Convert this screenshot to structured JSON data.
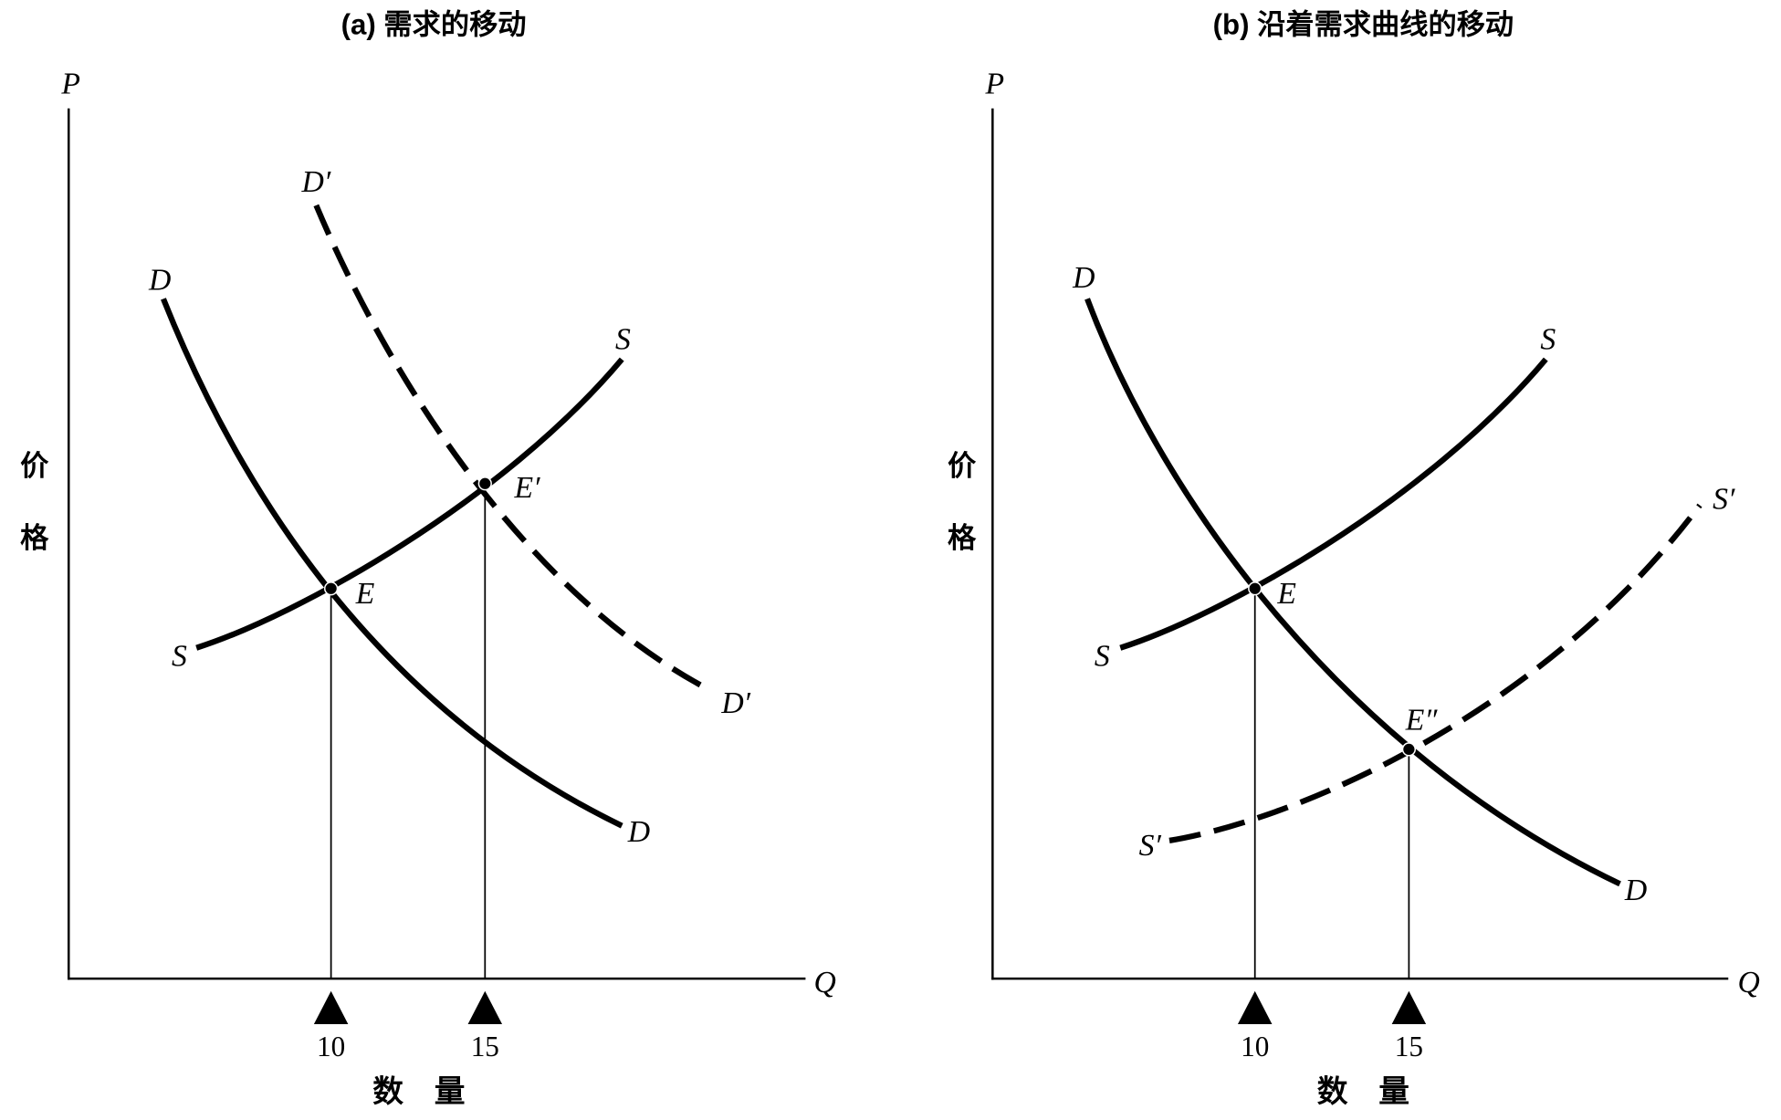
{
  "colors": {
    "background": "#ffffff",
    "ink": "#000000"
  },
  "panel_a": {
    "title": "(a) 需求的移动",
    "axis_p": "P",
    "axis_q": "Q",
    "price_label": [
      "价",
      "格"
    ],
    "quantity_label": [
      "数",
      "量"
    ],
    "ticks": [
      "10",
      "15"
    ],
    "demand_labels": [
      "D",
      "D"
    ],
    "supply_labels": [
      "S",
      "S"
    ],
    "new_demand_labels": [
      "D′",
      "D′"
    ],
    "point_e": "E",
    "point_e_new": "E′"
  },
  "panel_b": {
    "title": "(b) 沿着需求曲线的移动",
    "axis_p": "P",
    "axis_q": "Q",
    "price_label": [
      "价",
      "格"
    ],
    "quantity_label": [
      "数",
      "量"
    ],
    "ticks": [
      "10",
      "15"
    ],
    "demand_labels": [
      "D",
      "D"
    ],
    "supply_labels": [
      "S",
      "S"
    ],
    "new_supply_labels": [
      "S′",
      "S′"
    ],
    "point_e": "E",
    "point_e_new": "E″"
  }
}
